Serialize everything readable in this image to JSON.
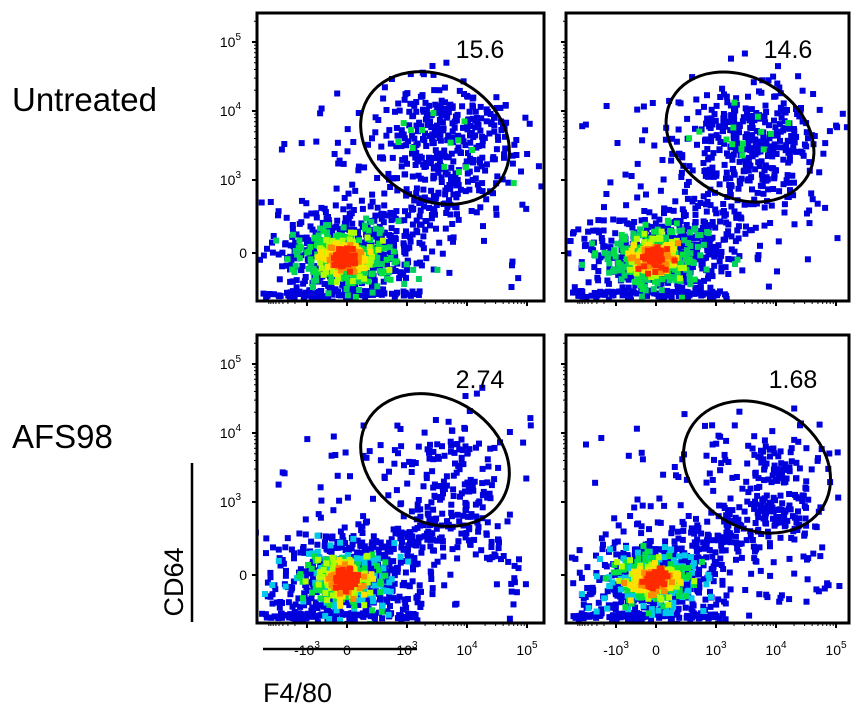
{
  "row_labels": [
    "Untreated",
    "AFS98"
  ],
  "axes": {
    "xlabel": "F4/80",
    "ylabel": "CD64",
    "x_ticks": [
      {
        "value": -1000,
        "base": "-10",
        "exp": "3"
      },
      {
        "value": 0,
        "base": "0",
        "exp": ""
      },
      {
        "value": 1000,
        "base": "10",
        "exp": "3"
      },
      {
        "value": 10000,
        "base": "10",
        "exp": "4"
      },
      {
        "value": 100000,
        "base": "10",
        "exp": "5"
      }
    ],
    "y_ticks": [
      {
        "value": 0,
        "base": "0",
        "exp": ""
      },
      {
        "value": 1000,
        "base": "10",
        "exp": "3"
      },
      {
        "value": 10000,
        "base": "10",
        "exp": "4"
      },
      {
        "value": 100000,
        "base": "10",
        "exp": "5"
      }
    ],
    "scale": "biexponential"
  },
  "colors": {
    "density_low": "#0000dd",
    "density_mid": "#00e040",
    "density_high": "#ff2a00",
    "gate": "#000000"
  },
  "chart_data": [
    {
      "type": "scatter",
      "panel": "Untreated-1",
      "gate_percent": "15.6",
      "gate": "ellipse, F4/80+ CD64+"
    },
    {
      "type": "scatter",
      "panel": "Untreated-2",
      "gate_percent": "14.6",
      "gate": "ellipse, F4/80+ CD64+"
    },
    {
      "type": "scatter",
      "panel": "AFS98-1",
      "gate_percent": "2.74",
      "gate": "ellipse, F4/80+ CD64+"
    },
    {
      "type": "scatter",
      "panel": "AFS98-2",
      "gate_percent": "1.68",
      "gate": "ellipse, F4/80+ CD64+"
    }
  ]
}
